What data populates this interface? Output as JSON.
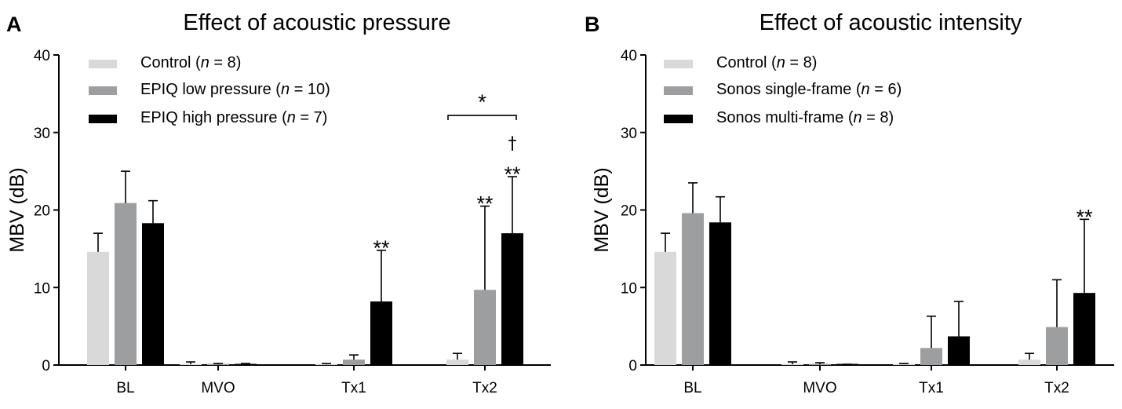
{
  "chart_data": [
    {
      "type": "bar",
      "panel_label": "A",
      "title": "Effect of acoustic pressure",
      "ylabel": "MBV (dB)",
      "xlabel": "",
      "ylim": [
        0,
        40
      ],
      "yticks": [
        "0",
        "10",
        "20",
        "30",
        "40"
      ],
      "categories": [
        "BL",
        "MVO",
        "Tx1",
        "Tx2"
      ],
      "legend_position": "top-left",
      "series": [
        {
          "name": "Control",
          "n_text": "8",
          "color": "#d9d9d9",
          "values": [
            14.6,
            0.1,
            0.1,
            0.7
          ],
          "errors": [
            2.4,
            0.3,
            0.1,
            0.8
          ]
        },
        {
          "name": "EPIQ low pressure",
          "n_text": "10",
          "color": "#9d9ea0",
          "values": [
            20.9,
            0.1,
            0.7,
            9.7
          ],
          "errors": [
            4.1,
            0.1,
            0.6,
            10.8
          ]
        },
        {
          "name": "EPIQ high pressure",
          "n_text": "7",
          "color": "#000000",
          "values": [
            18.3,
            0.1,
            8.2,
            17.0
          ],
          "errors": [
            2.9,
            0.1,
            6.6,
            7.3
          ]
        }
      ],
      "annotations": [
        {
          "text": "**",
          "category": 2,
          "series": 2
        },
        {
          "text": "**",
          "category": 3,
          "series": 1
        },
        {
          "text": "**",
          "category": 3,
          "series": 2
        },
        {
          "text": "†",
          "category": 3,
          "series": 2
        }
      ],
      "bracket": {
        "text": "*",
        "category": 3,
        "from_series": 0,
        "to_series": 2,
        "y": 32.2
      }
    },
    {
      "type": "bar",
      "panel_label": "B",
      "title": "Effect of acoustic intensity",
      "ylabel": "MBV (dB)",
      "xlabel": "",
      "ylim": [
        0,
        40
      ],
      "yticks": [
        "0",
        "10",
        "20",
        "30",
        "40"
      ],
      "categories": [
        "BL",
        "MVO",
        "Tx1",
        "Tx2"
      ],
      "legend_position": "top-left",
      "series": [
        {
          "name": "Control",
          "n_text": "8",
          "color": "#d9d9d9",
          "values": [
            14.6,
            0.1,
            0.1,
            0.7
          ],
          "errors": [
            2.4,
            0.3,
            0.1,
            0.8
          ]
        },
        {
          "name": "Sonos single-frame",
          "n_text": "6",
          "color": "#9d9ea0",
          "values": [
            19.6,
            0.1,
            2.2,
            4.9
          ],
          "errors": [
            3.9,
            0.2,
            4.1,
            6.1
          ]
        },
        {
          "name": "Sonos multi-frame",
          "n_text": "8",
          "color": "#000000",
          "values": [
            18.4,
            0.05,
            3.7,
            9.3
          ],
          "errors": [
            3.3,
            0.05,
            4.5,
            9.5
          ]
        }
      ],
      "annotations": [
        {
          "text": "**",
          "category": 3,
          "series": 2
        }
      ]
    }
  ]
}
